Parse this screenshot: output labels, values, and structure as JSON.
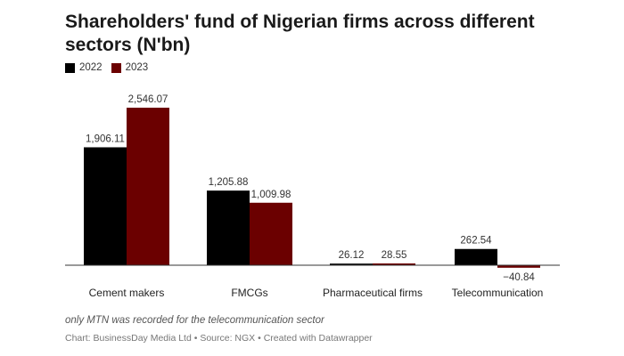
{
  "title": "Shareholders' fund of Nigerian firms across different sectors (N'bn)",
  "legend": [
    {
      "label": "2022",
      "color": "#000000"
    },
    {
      "label": "2023",
      "color": "#6b0000"
    }
  ],
  "chart_data": {
    "type": "bar",
    "title": "Shareholders' fund of Nigerian firms across different sectors (N'bn)",
    "categories": [
      "Cement makers",
      "FMCGs",
      "Pharmaceutical firms",
      "Telecommunication"
    ],
    "series": [
      {
        "name": "2022",
        "color": "#000000",
        "values": [
          1906.11,
          1205.88,
          26.12,
          262.54
        ],
        "labels": [
          "1,906.11",
          "1,205.88",
          "26.12",
          "262.54"
        ]
      },
      {
        "name": "2023",
        "color": "#6b0000",
        "values": [
          2546.07,
          1009.98,
          28.55,
          -40.84
        ],
        "labels": [
          "2,546.07",
          "1,009.98",
          "28.55",
          "−40.84"
        ]
      }
    ],
    "xlabel": "",
    "ylabel": "",
    "legend_position": "top-left",
    "grid": false
  },
  "note": "only MTN was recorded for the telecommunication sector",
  "source": "Chart: BusinessDay Media Ltd • Source: NGX • Created with Datawrapper"
}
